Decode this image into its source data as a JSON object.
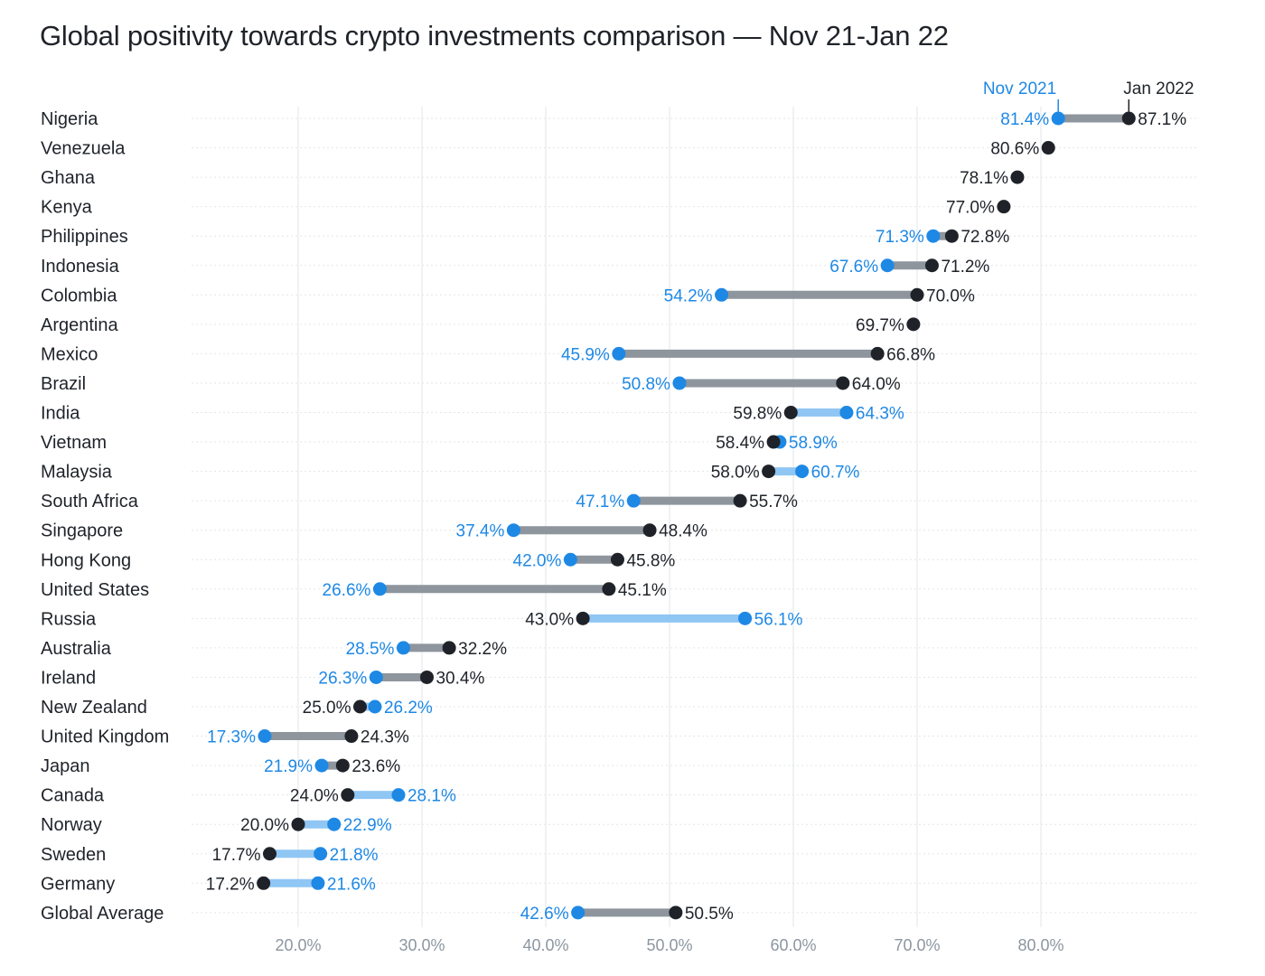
{
  "chart_data": {
    "type": "dumbbell",
    "title": "Global positivity towards crypto investments comparison — Nov 21-Jan 22",
    "xlabel": "",
    "ylabel": "",
    "xlim": [
      11.5,
      88.0
    ],
    "x_ticks": [
      20,
      30,
      40,
      50,
      60,
      70,
      80
    ],
    "x_tick_labels": [
      "20.0%",
      "30.0%",
      "40.0%",
      "50.0%",
      "60.0%",
      "70.0%",
      "80.0%"
    ],
    "grid": "vertical",
    "legend_placement": "top-right",
    "series": [
      {
        "name": "Nov 2021",
        "color": "#1e88e5"
      },
      {
        "name": "Jan 2022",
        "color": "#1f2329"
      }
    ],
    "colors": {
      "connector_increase": "#8e959d",
      "connector_decrease": "#90c6f4",
      "gridline": "#e2e5e8"
    },
    "rows": [
      {
        "country": "Nigeria",
        "nov": 81.4,
        "jan": 87.1,
        "nov_label": "81.4%",
        "jan_label": "87.1%"
      },
      {
        "country": "Venezuela",
        "nov": null,
        "jan": 80.6,
        "nov_label": "",
        "jan_label": "80.6%"
      },
      {
        "country": "Ghana",
        "nov": null,
        "jan": 78.1,
        "nov_label": "",
        "jan_label": "78.1%"
      },
      {
        "country": "Kenya",
        "nov": null,
        "jan": 77.0,
        "nov_label": "",
        "jan_label": "77.0%"
      },
      {
        "country": "Philippines",
        "nov": 71.3,
        "jan": 72.8,
        "nov_label": "71.3%",
        "jan_label": "72.8%"
      },
      {
        "country": "Indonesia",
        "nov": 67.6,
        "jan": 71.2,
        "nov_label": "67.6%",
        "jan_label": "71.2%"
      },
      {
        "country": "Colombia",
        "nov": 54.2,
        "jan": 70.0,
        "nov_label": "54.2%",
        "jan_label": "70.0%"
      },
      {
        "country": "Argentina",
        "nov": null,
        "jan": 69.7,
        "nov_label": "",
        "jan_label": "69.7%"
      },
      {
        "country": "Mexico",
        "nov": 45.9,
        "jan": 66.8,
        "nov_label": "45.9%",
        "jan_label": "66.8%"
      },
      {
        "country": "Brazil",
        "nov": 50.8,
        "jan": 64.0,
        "nov_label": "50.8%",
        "jan_label": "64.0%"
      },
      {
        "country": "India",
        "nov": 64.3,
        "jan": 59.8,
        "nov_label": "64.3%",
        "jan_label": "59.8%"
      },
      {
        "country": "Vietnam",
        "nov": 58.9,
        "jan": 58.4,
        "nov_label": "58.9%",
        "jan_label": "58.4%"
      },
      {
        "country": "Malaysia",
        "nov": 60.7,
        "jan": 58.0,
        "nov_label": "60.7%",
        "jan_label": "58.0%"
      },
      {
        "country": "South Africa",
        "nov": 47.1,
        "jan": 55.7,
        "nov_label": "47.1%",
        "jan_label": "55.7%"
      },
      {
        "country": "Singapore",
        "nov": 37.4,
        "jan": 48.4,
        "nov_label": "37.4%",
        "jan_label": "48.4%"
      },
      {
        "country": "Hong Kong",
        "nov": 42.0,
        "jan": 45.8,
        "nov_label": "42.0%",
        "jan_label": "45.8%"
      },
      {
        "country": "United States",
        "nov": 26.6,
        "jan": 45.1,
        "nov_label": "26.6%",
        "jan_label": "45.1%"
      },
      {
        "country": "Russia",
        "nov": 56.1,
        "jan": 43.0,
        "nov_label": "56.1%",
        "jan_label": "43.0%"
      },
      {
        "country": "Australia",
        "nov": 28.5,
        "jan": 32.2,
        "nov_label": "28.5%",
        "jan_label": "32.2%"
      },
      {
        "country": "Ireland",
        "nov": 26.3,
        "jan": 30.4,
        "nov_label": "26.3%",
        "jan_label": "30.4%"
      },
      {
        "country": "New Zealand",
        "nov": 26.2,
        "jan": 25.0,
        "nov_label": "26.2%",
        "jan_label": "25.0%"
      },
      {
        "country": "United Kingdom",
        "nov": 17.3,
        "jan": 24.3,
        "nov_label": "17.3%",
        "jan_label": "24.3%"
      },
      {
        "country": "Japan",
        "nov": 21.9,
        "jan": 23.6,
        "nov_label": "21.9%",
        "jan_label": "23.6%"
      },
      {
        "country": "Canada",
        "nov": 28.1,
        "jan": 24.0,
        "nov_label": "28.1%",
        "jan_label": "24.0%"
      },
      {
        "country": "Norway",
        "nov": 22.9,
        "jan": 20.0,
        "nov_label": "22.9%",
        "jan_label": "20.0%"
      },
      {
        "country": "Sweden",
        "nov": 21.8,
        "jan": 17.7,
        "nov_label": "21.8%",
        "jan_label": "17.7%"
      },
      {
        "country": "Germany",
        "nov": 21.6,
        "jan": 17.2,
        "nov_label": "21.6%",
        "jan_label": "17.2%"
      },
      {
        "country": "Global Average",
        "nov": 42.6,
        "jan": 50.5,
        "nov_label": "42.6%",
        "jan_label": "50.5%"
      }
    ]
  }
}
